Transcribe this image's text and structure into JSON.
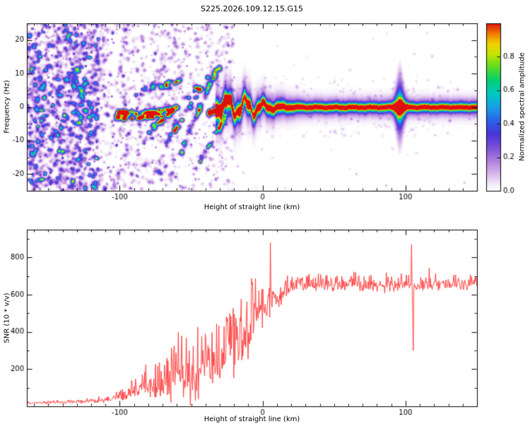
{
  "page": {
    "title": "S225.2026.109.12.15.G15",
    "background": "#ffffff"
  },
  "chart_data": [
    {
      "type": "heatmap",
      "title": "S225.2026.109.12.15.G15",
      "xlabel": "Height of straight line (km)",
      "ylabel": "Frequency (Hz)",
      "xlim": [
        -165,
        150
      ],
      "ylim": [
        -25,
        25
      ],
      "xticks": [
        -100,
        0,
        100
      ],
      "yticks": [
        -20,
        -10,
        0,
        10,
        20
      ],
      "x_minor_step": 10,
      "y_minor_step": 5,
      "grid": false,
      "colorbar": {
        "label": "Normalized spectral amplitude",
        "ticks": [
          "0.0",
          "0.2",
          "0.4",
          "0.6",
          "0.8"
        ],
        "tick_values": [
          0,
          0.2,
          0.4,
          0.6,
          0.8
        ],
        "range": [
          0,
          1
        ]
      },
      "colormap": [
        [
          0.0,
          "#ffffff"
        ],
        [
          0.04,
          "#f3eaf9"
        ],
        [
          0.1,
          "#d9b8ec"
        ],
        [
          0.18,
          "#b07fdd"
        ],
        [
          0.26,
          "#7a4fd8"
        ],
        [
          0.34,
          "#4636d8"
        ],
        [
          0.42,
          "#2b62e8"
        ],
        [
          0.5,
          "#18a0e8"
        ],
        [
          0.58,
          "#00c8c0"
        ],
        [
          0.66,
          "#00d070"
        ],
        [
          0.74,
          "#60dc20"
        ],
        [
          0.82,
          "#c8e400"
        ],
        [
          0.88,
          "#f0d000"
        ],
        [
          0.94,
          "#f07800"
        ],
        [
          1.0,
          "#e01010"
        ]
      ],
      "seed": 1234,
      "speckle_regions": [
        {
          "x": [
            -165,
            -115
          ],
          "n": 1500,
          "amp": [
            0.06,
            0.45
          ],
          "sig": [
            0.8,
            2.4
          ],
          "bright": 0.04,
          "fband": 0,
          "band_frac": 0
        },
        {
          "x": [
            -115,
            -60
          ],
          "n": 720,
          "amp": [
            0.05,
            0.3
          ],
          "sig": [
            0.8,
            2.2
          ],
          "bright": 0.02,
          "fband": 0,
          "band_frac": 0
        },
        {
          "x": [
            -60,
            -20
          ],
          "n": 380,
          "amp": [
            0.05,
            0.25
          ],
          "sig": [
            0.8,
            2.0
          ],
          "bright": 0.01,
          "fband": 0,
          "band_frac": 0
        },
        {
          "x": [
            -20,
            150
          ],
          "n": 240,
          "amp": [
            0.04,
            0.12
          ],
          "sig": [
            0.8,
            1.8
          ],
          "bright": 0.0,
          "fband": 9,
          "band_frac": 0.8
        }
      ],
      "chirp_arcs": [
        {
          "x0": -103,
          "f0": -2.5,
          "x1": -62,
          "f1": -1.5,
          "n": 60,
          "amp": 0.85,
          "jit": 2.5
        },
        {
          "x0": -92,
          "f0": 4,
          "x1": -58,
          "f1": 8,
          "n": 30,
          "amp": 0.5,
          "jit": 2.0
        },
        {
          "x0": -80,
          "f0": -7,
          "x1": -45,
          "f1": 6,
          "n": 35,
          "amp": 0.55,
          "jit": 2.0
        },
        {
          "x0": -68,
          "f0": -11,
          "x1": -38,
          "f1": 9,
          "n": 32,
          "amp": 0.5,
          "jit": 2.0
        },
        {
          "x0": -57,
          "f0": -13,
          "x1": -32,
          "f1": 12,
          "n": 28,
          "amp": 0.45,
          "jit": 2.0
        },
        {
          "x0": -50,
          "f0": -5,
          "x1": -27,
          "f1": 15,
          "n": 22,
          "amp": 0.4,
          "jit": 1.5
        },
        {
          "x0": -44,
          "f0": -16,
          "x1": -25,
          "f1": -2,
          "n": 22,
          "amp": 0.5,
          "jit": 1.5
        },
        {
          "x0": -38,
          "f0": -2,
          "x1": -22,
          "f1": 3,
          "n": 26,
          "amp": 0.7,
          "jit": 1.5
        }
      ],
      "main_trace": {
        "x_start": -33,
        "wiggle_amp": [
          [
            -33,
            1.6
          ],
          [
            -26,
            2.6
          ],
          [
            -18,
            2.1
          ],
          [
            -10,
            2.4
          ],
          [
            -3,
            1.6
          ],
          [
            3,
            0.9
          ],
          [
            10,
            0.4
          ],
          [
            20,
            0.15
          ],
          [
            150,
            0.06
          ]
        ],
        "sigma_hz": [
          [
            -33,
            1.8
          ],
          [
            -10,
            1.5
          ],
          [
            0,
            1.2
          ],
          [
            30,
            0.8
          ],
          [
            150,
            0.75
          ]
        ],
        "core_right": 0.93,
        "halo": 0.22,
        "violet": 0.1,
        "disturb_x": 96
      }
    },
    {
      "type": "line",
      "series": [
        {
          "name": "SNR",
          "color": "#ff3333"
        }
      ],
      "xlabel": "Height of straight line (km)",
      "ylabel": "SNR (10 * v/v)",
      "xlim": [
        -165,
        150
      ],
      "ylim": [
        0,
        950
      ],
      "xticks": [
        -100,
        0,
        100
      ],
      "yticks": [
        200,
        400,
        600,
        800
      ],
      "x_minor_step": 10,
      "y_minor_step": 100,
      "grid": false,
      "step_km": 0.4,
      "seed": 77,
      "envelope": [
        [
          -165,
          18,
          10
        ],
        [
          -150,
          20,
          12
        ],
        [
          -135,
          22,
          13
        ],
        [
          -120,
          26,
          16
        ],
        [
          -108,
          35,
          24
        ],
        [
          -98,
          55,
          40
        ],
        [
          -88,
          85,
          70
        ],
        [
          -80,
          105,
          120
        ],
        [
          -74,
          115,
          150
        ],
        [
          -66,
          140,
          160
        ],
        [
          -58,
          150,
          240
        ],
        [
          -50,
          165,
          220
        ],
        [
          -44,
          195,
          280
        ],
        [
          -38,
          195,
          190
        ],
        [
          -32,
          215,
          210
        ],
        [
          -27,
          290,
          300
        ],
        [
          -22,
          330,
          330
        ],
        [
          -17,
          300,
          310
        ],
        [
          -13,
          410,
          280
        ],
        [
          -8,
          440,
          260
        ],
        [
          -4,
          470,
          230
        ],
        [
          0,
          510,
          210
        ],
        [
          5,
          555,
          160
        ],
        [
          10,
          595,
          110
        ],
        [
          18,
          628,
          85
        ],
        [
          25,
          648,
          62
        ],
        [
          40,
          650,
          60
        ],
        [
          60,
          655,
          62
        ],
        [
          80,
          650,
          60
        ],
        [
          95,
          655,
          58
        ],
        [
          103,
          658,
          58
        ],
        [
          108,
          650,
          58
        ],
        [
          120,
          652,
          55
        ],
        [
          150,
          658,
          55
        ]
      ],
      "spike": {
        "points": [
          [
            103.8,
            660
          ],
          [
            104.3,
            870
          ],
          [
            104.8,
            500
          ],
          [
            105.3,
            300
          ],
          [
            105.9,
            640
          ]
        ]
      }
    }
  ]
}
